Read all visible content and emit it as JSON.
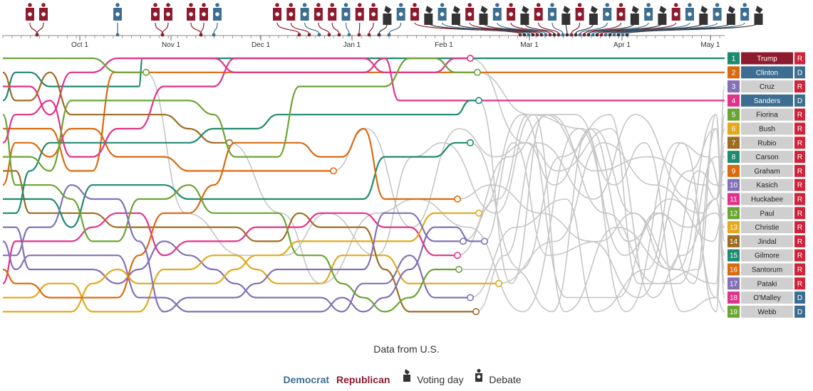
{
  "chart_data": {
    "type": "line",
    "subtype": "bump",
    "x_ticks": [
      "Oct 1",
      "Nov 1",
      "Dec 1",
      "Jan 1",
      "Feb 1",
      "Mar 1",
      "Apr 1",
      "May 1"
    ],
    "ranking": [
      {
        "rank": 1,
        "name": "Trump",
        "party": "R",
        "color": "#1f8a70",
        "active": true
      },
      {
        "rank": 2,
        "name": "Clinton",
        "party": "D",
        "color": "#d96a10",
        "active": true
      },
      {
        "rank": 3,
        "name": "Cruz",
        "party": "R",
        "color": "#8271b7",
        "active": false
      },
      {
        "rank": 4,
        "name": "Sanders",
        "party": "D",
        "color": "#e0338a",
        "active": true
      },
      {
        "rank": 5,
        "name": "Fiorina",
        "party": "R",
        "color": "#6aa534",
        "active": false
      },
      {
        "rank": 6,
        "name": "Bush",
        "party": "R",
        "color": "#e2a91d",
        "active": false
      },
      {
        "rank": 7,
        "name": "Rubio",
        "party": "R",
        "color": "#9d6c22",
        "active": false
      },
      {
        "rank": 8,
        "name": "Carson",
        "party": "R",
        "color": "#1f8a70",
        "active": false
      },
      {
        "rank": 9,
        "name": "Graham",
        "party": "R",
        "color": "#d96a10",
        "active": false
      },
      {
        "rank": 10,
        "name": "Kasich",
        "party": "R",
        "color": "#8271b7",
        "active": false
      },
      {
        "rank": 11,
        "name": "Huckabee",
        "party": "R",
        "color": "#e0338a",
        "active": false
      },
      {
        "rank": 12,
        "name": "Paul",
        "party": "R",
        "color": "#6aa534",
        "active": false
      },
      {
        "rank": 13,
        "name": "Christie",
        "party": "R",
        "color": "#e2a91d",
        "active": false
      },
      {
        "rank": 14,
        "name": "Jindal",
        "party": "R",
        "color": "#9d6c22",
        "active": false
      },
      {
        "rank": 15,
        "name": "Gilmore",
        "party": "R",
        "color": "#1f8a70",
        "active": false
      },
      {
        "rank": 16,
        "name": "Santorum",
        "party": "R",
        "color": "#d96a10",
        "active": false
      },
      {
        "rank": 17,
        "name": "Pataki",
        "party": "R",
        "color": "#8271b7",
        "active": false
      },
      {
        "rank": 18,
        "name": "O'Malley",
        "party": "D",
        "color": "#e0338a",
        "active": false
      },
      {
        "rank": 19,
        "name": "Webb",
        "party": "D",
        "color": "#6aa534",
        "active": false
      }
    ],
    "colors": {
      "democrat": "#3d6e91",
      "republican": "#8e1b2d",
      "inactive_line": "#c6c6c6",
      "inactive_label": "#cfcfcf",
      "voting_day": "#333333"
    }
  },
  "source": "Data from U.S.",
  "legend": {
    "democrat": "Democrat",
    "republican": "Republican",
    "voting_day": "Voting day",
    "debate": "Debate"
  }
}
